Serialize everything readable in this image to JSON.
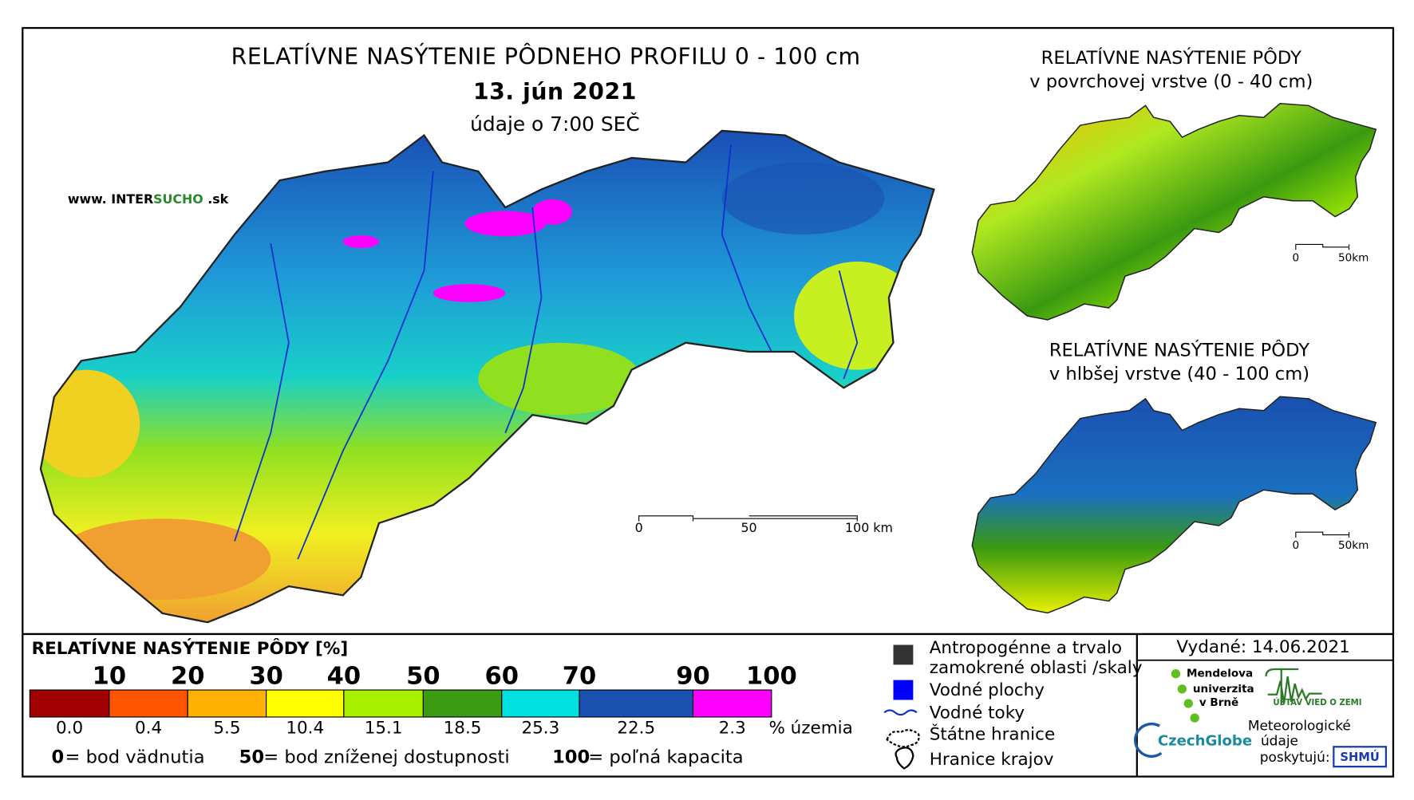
{
  "header": {
    "title": "RELATÍVNE NASÝTENIE PÔDNEHO PROFILU 0 - 100 cm",
    "date": "13. jún 2021",
    "note": "údaje o 7:00 SEČ",
    "website": [
      "www. INTER",
      "SUCHO",
      " .sk"
    ]
  },
  "main_map": {
    "scale_labels": [
      "0",
      "50",
      "100 km"
    ]
  },
  "insets": [
    {
      "title": [
        "RELATÍVNE NASÝTENIE PÔDY",
        "v povrchovej vrstve (0 - 40 cm)"
      ],
      "scale_labels": [
        "0",
        "50km"
      ]
    },
    {
      "title": [
        "RELATÍVNE NASÝTENIE PÔDY",
        "v hlbšej vrstve (40 - 100 cm)"
      ],
      "scale_labels": [
        "0",
        "50km"
      ]
    }
  ],
  "legend": {
    "title": "RELATÍVNE NASÝTENIE PÔDY [%]",
    "colors": [
      "#a00000",
      "#ff5500",
      "#ffb000",
      "#ffff00",
      "#a8f000",
      "#3a9a10",
      "#00e0e0",
      "#1a50b0",
      "#ff00ff"
    ],
    "ticks": [
      10,
      20,
      30,
      40,
      50,
      60,
      70,
      90,
      100
    ],
    "shares": [
      "0.0",
      "0.4",
      "5.5",
      "10.4",
      "15.1",
      "18.5",
      "25.3",
      "22.5",
      "2.3"
    ],
    "shares_unit": "% územia",
    "notes": [
      {
        "key": "0",
        "text": "= bod vädnutia"
      },
      {
        "key": "50",
        "text": "= bod zníženej dostupnosti"
      },
      {
        "key": "100",
        "text": "= poľná kapacita"
      }
    ]
  },
  "symbols": {
    "anthropogenic": [
      "Antropogénne a trvalo",
      "zamokrené oblasti /skaly"
    ],
    "water_bodies": "Vodné plochy",
    "streams": "Vodné toky",
    "state_border": "Štátne hranice",
    "region_border": "Hranice krajov"
  },
  "credits": {
    "issued": "Vydané: 14.06.2021",
    "mendel": [
      "Mendelova",
      "univerzita",
      "v Brně"
    ],
    "ustav": "ÚSTAV VIED O ZEMI",
    "czechglobe": "CzechGlobe",
    "meteo": [
      "Meteorologické",
      "údaje",
      "poskytujú:"
    ],
    "shmu": "SHMÚ"
  }
}
